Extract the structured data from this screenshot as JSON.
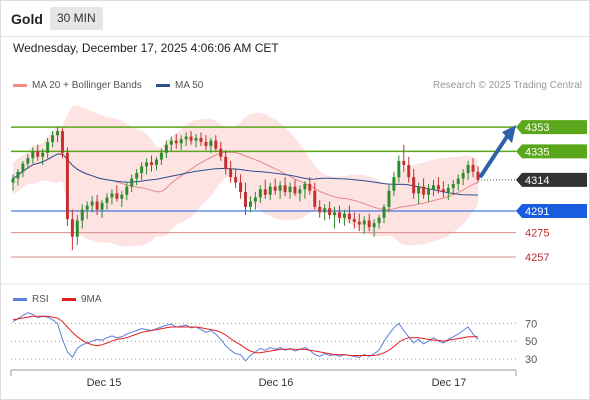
{
  "header": {
    "instrument": "Gold",
    "timeframe": "30 MIN"
  },
  "timestamp": "Wednesday, December 17, 2025 4:06:06 AM CET",
  "legend": [
    {
      "label": "MA 20 + Bollinger Bands",
      "color": "#f28b82"
    },
    {
      "label": "MA 50",
      "color": "#2f4f8f"
    }
  ],
  "credit": "Research © 2025 Trading Central",
  "rsi_legend": [
    {
      "label": "RSI",
      "color": "#5b7fdc"
    },
    {
      "label": "9MA",
      "color": "#e02020"
    }
  ],
  "colors": {
    "bull": "#2e8b2e",
    "bear": "#c43030",
    "resistance": "#5aa71c",
    "support": "#1a5ce0",
    "pivot": "#d98b8b",
    "current": "#333333",
    "band_fill": "#fde0df",
    "ma20": "#e58a8a",
    "ma50": "#2f4f8f",
    "arrow": "#2e62a8"
  },
  "chart_data": [
    {
      "type": "candlestick",
      "title": "Gold 30 MIN",
      "x_labels": [
        "Dec 15",
        "Dec 16",
        "Dec 17"
      ],
      "ylim": [
        4240,
        4373
      ],
      "levels": [
        {
          "label": "4353",
          "value": 4353,
          "kind": "resistance"
        },
        {
          "label": "4335",
          "value": 4335,
          "kind": "resistance"
        },
        {
          "label": "4314",
          "value": 4314,
          "kind": "current"
        },
        {
          "label": "4291",
          "value": 4291,
          "kind": "support"
        },
        {
          "label": "4275",
          "value": 4275,
          "kind": "pivot"
        },
        {
          "label": "4257",
          "value": 4257,
          "kind": "pivot"
        }
      ],
      "candles": [
        [
          4312,
          4318,
          4306,
          4315
        ],
        [
          4315,
          4322,
          4310,
          4320
        ],
        [
          4320,
          4328,
          4316,
          4326
        ],
        [
          4326,
          4333,
          4322,
          4330
        ],
        [
          4330,
          4338,
          4326,
          4335
        ],
        [
          4335,
          4340,
          4328,
          4331
        ],
        [
          4331,
          4337,
          4325,
          4334
        ],
        [
          4334,
          4345,
          4330,
          4342
        ],
        [
          4342,
          4350,
          4338,
          4347
        ],
        [
          4347,
          4353,
          4342,
          4350
        ],
        [
          4350,
          4352,
          4330,
          4334
        ],
        [
          4334,
          4338,
          4280,
          4285
        ],
        [
          4285,
          4292,
          4262,
          4272
        ],
        [
          4272,
          4288,
          4266,
          4284
        ],
        [
          4284,
          4296,
          4278,
          4292
        ],
        [
          4292,
          4298,
          4285,
          4295
        ],
        [
          4295,
          4302,
          4290,
          4298
        ],
        [
          4298,
          4303,
          4288,
          4292
        ],
        [
          4292,
          4299,
          4286,
          4297
        ],
        [
          4297,
          4304,
          4292,
          4301
        ],
        [
          4301,
          4307,
          4296,
          4304
        ],
        [
          4304,
          4310,
          4298,
          4300
        ],
        [
          4300,
          4306,
          4294,
          4303
        ],
        [
          4303,
          4312,
          4299,
          4309
        ],
        [
          4309,
          4318,
          4305,
          4315
        ],
        [
          4315,
          4322,
          4310,
          4319
        ],
        [
          4319,
          4327,
          4314,
          4324
        ],
        [
          4324,
          4330,
          4318,
          4327
        ],
        [
          4327,
          4332,
          4320,
          4325
        ],
        [
          4325,
          4331,
          4321,
          4329
        ],
        [
          4329,
          4337,
          4325,
          4334
        ],
        [
          4334,
          4343,
          4330,
          4340
        ],
        [
          4340,
          4346,
          4335,
          4343
        ],
        [
          4343,
          4348,
          4337,
          4341
        ],
        [
          4341,
          4347,
          4336,
          4344
        ],
        [
          4344,
          4349,
          4339,
          4346
        ],
        [
          4346,
          4350,
          4340,
          4343
        ],
        [
          4343,
          4348,
          4338,
          4345
        ],
        [
          4345,
          4349,
          4339,
          4342
        ],
        [
          4342,
          4347,
          4336,
          4339
        ],
        [
          4339,
          4345,
          4334,
          4343
        ],
        [
          4343,
          4347,
          4335,
          4337
        ],
        [
          4337,
          4342,
          4328,
          4331
        ],
        [
          4331,
          4336,
          4318,
          4322
        ],
        [
          4322,
          4328,
          4312,
          4316
        ],
        [
          4316,
          4322,
          4308,
          4312
        ],
        [
          4312,
          4318,
          4300,
          4305
        ],
        [
          4305,
          4312,
          4288,
          4294
        ],
        [
          4294,
          4302,
          4290,
          4298
        ],
        [
          4298,
          4305,
          4292,
          4301
        ],
        [
          4301,
          4310,
          4297,
          4307
        ],
        [
          4307,
          4314,
          4300,
          4303
        ],
        [
          4303,
          4312,
          4299,
          4309
        ],
        [
          4309,
          4315,
          4303,
          4306
        ],
        [
          4306,
          4313,
          4300,
          4310
        ],
        [
          4310,
          4316,
          4302,
          4305
        ],
        [
          4305,
          4312,
          4300,
          4309
        ],
        [
          4309,
          4314,
          4302,
          4304
        ],
        [
          4304,
          4310,
          4298,
          4307
        ],
        [
          4307,
          4313,
          4300,
          4311
        ],
        [
          4311,
          4316,
          4303,
          4306
        ],
        [
          4306,
          4312,
          4292,
          4294
        ],
        [
          4294,
          4299,
          4286,
          4290
        ],
        [
          4290,
          4296,
          4284,
          4293
        ],
        [
          4293,
          4298,
          4285,
          4288
        ],
        [
          4288,
          4294,
          4278,
          4290
        ],
        [
          4290,
          4295,
          4282,
          4286
        ],
        [
          4286,
          4292,
          4280,
          4289
        ],
        [
          4289,
          4295,
          4282,
          4285
        ],
        [
          4285,
          4290,
          4278,
          4283
        ],
        [
          4283,
          4289,
          4276,
          4281
        ],
        [
          4281,
          4287,
          4274,
          4284
        ],
        [
          4284,
          4289,
          4276,
          4279
        ],
        [
          4279,
          4285,
          4272,
          4282
        ],
        [
          4282,
          4288,
          4278,
          4286
        ],
        [
          4286,
          4296,
          4282,
          4294
        ],
        [
          4294,
          4310,
          4290,
          4306
        ],
        [
          4306,
          4320,
          4302,
          4316
        ],
        [
          4316,
          4332,
          4312,
          4328
        ],
        [
          4328,
          4340,
          4320,
          4325
        ],
        [
          4325,
          4331,
          4312,
          4316
        ],
        [
          4316,
          4322,
          4300,
          4304
        ],
        [
          4304,
          4312,
          4296,
          4309
        ],
        [
          4309,
          4315,
          4300,
          4303
        ],
        [
          4303,
          4311,
          4298,
          4307
        ],
        [
          4307,
          4314,
          4302,
          4310
        ],
        [
          4310,
          4316,
          4304,
          4307
        ],
        [
          4307,
          4313,
          4301,
          4305
        ],
        [
          4305,
          4311,
          4299,
          4308
        ],
        [
          4308,
          4314,
          4303,
          4311
        ],
        [
          4311,
          4318,
          4306,
          4315
        ],
        [
          4315,
          4322,
          4310,
          4319
        ],
        [
          4319,
          4328,
          4314,
          4325
        ],
        [
          4325,
          4330,
          4316,
          4320
        ],
        [
          4320,
          4324,
          4312,
          4314
        ]
      ]
    },
    {
      "type": "line",
      "title": "RSI",
      "x_labels": [
        "Dec 15",
        "Dec 16",
        "Dec 17"
      ],
      "ylim": [
        20,
        85
      ],
      "yticks": [
        70,
        50,
        30
      ],
      "series": [
        {
          "name": "RSI",
          "values": [
            72,
            75,
            79,
            82,
            80,
            76,
            78,
            77,
            74,
            70,
            52,
            38,
            32,
            42,
            46,
            48,
            50,
            52,
            51,
            54,
            56,
            54,
            55,
            58,
            60,
            62,
            64,
            63,
            62,
            64,
            66,
            68,
            69,
            66,
            67,
            68,
            65,
            66,
            63,
            60,
            62,
            58,
            52,
            45,
            40,
            36,
            35,
            28,
            34,
            38,
            42,
            40,
            43,
            41,
            43,
            40,
            42,
            39,
            41,
            43,
            40,
            35,
            33,
            36,
            34,
            35,
            33,
            35,
            34,
            33,
            32,
            35,
            33,
            36,
            40,
            50,
            58,
            65,
            70,
            62,
            55,
            48,
            52,
            47,
            50,
            54,
            50,
            48,
            52,
            55,
            58,
            62,
            66,
            58,
            52
          ]
        },
        {
          "name": "9MA",
          "values": [
            74,
            75,
            76,
            77,
            78,
            78,
            78,
            78,
            77,
            76,
            72,
            66,
            60,
            55,
            51,
            48,
            46,
            45,
            46,
            48,
            50,
            52,
            53,
            54,
            56,
            58,
            60,
            61,
            62,
            63,
            64,
            65,
            66,
            66,
            66,
            66,
            66,
            66,
            65,
            64,
            63,
            62,
            60,
            57,
            53,
            49,
            46,
            42,
            39,
            37,
            37,
            38,
            39,
            40,
            41,
            41,
            41,
            41,
            41,
            41,
            40,
            39,
            38,
            37,
            36,
            35,
            35,
            35,
            34,
            34,
            34,
            34,
            34,
            34,
            35,
            37,
            40,
            44,
            49,
            52,
            54,
            54,
            54,
            53,
            52,
            51,
            51,
            50,
            51,
            52,
            53,
            54,
            55,
            55,
            55
          ]
        }
      ]
    }
  ]
}
